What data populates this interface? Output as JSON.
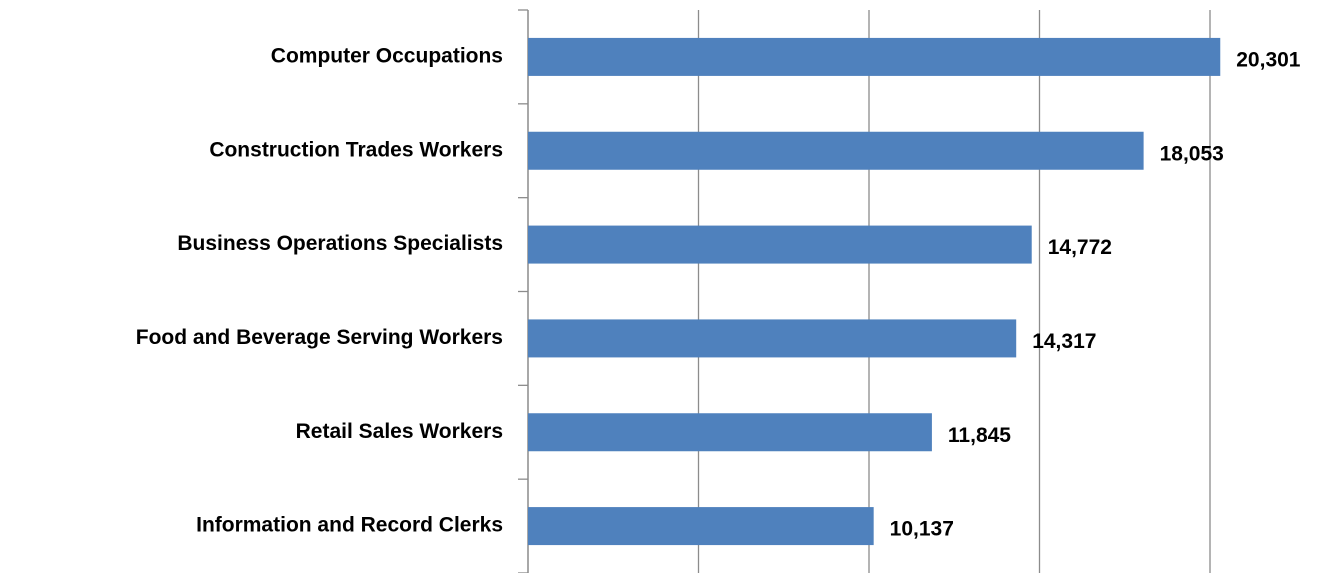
{
  "chart_data": {
    "type": "bar",
    "orientation": "horizontal",
    "categories": [
      "Computer Occupations",
      "Construction Trades Workers",
      "Business Operations Specialists",
      "Food and Beverage Serving Workers",
      "Retail Sales Workers",
      "Information and Record Clerks"
    ],
    "values": [
      20301,
      18053,
      14772,
      14317,
      11845,
      10137
    ],
    "value_labels": [
      "20,301",
      "18,053",
      "14,772",
      "14,317",
      "11,845",
      "10,137"
    ],
    "color": "#4f81bd",
    "xlim": [
      0,
      23000
    ],
    "xticks": [
      0,
      5000,
      10000,
      15000,
      20000
    ],
    "grid": true
  }
}
